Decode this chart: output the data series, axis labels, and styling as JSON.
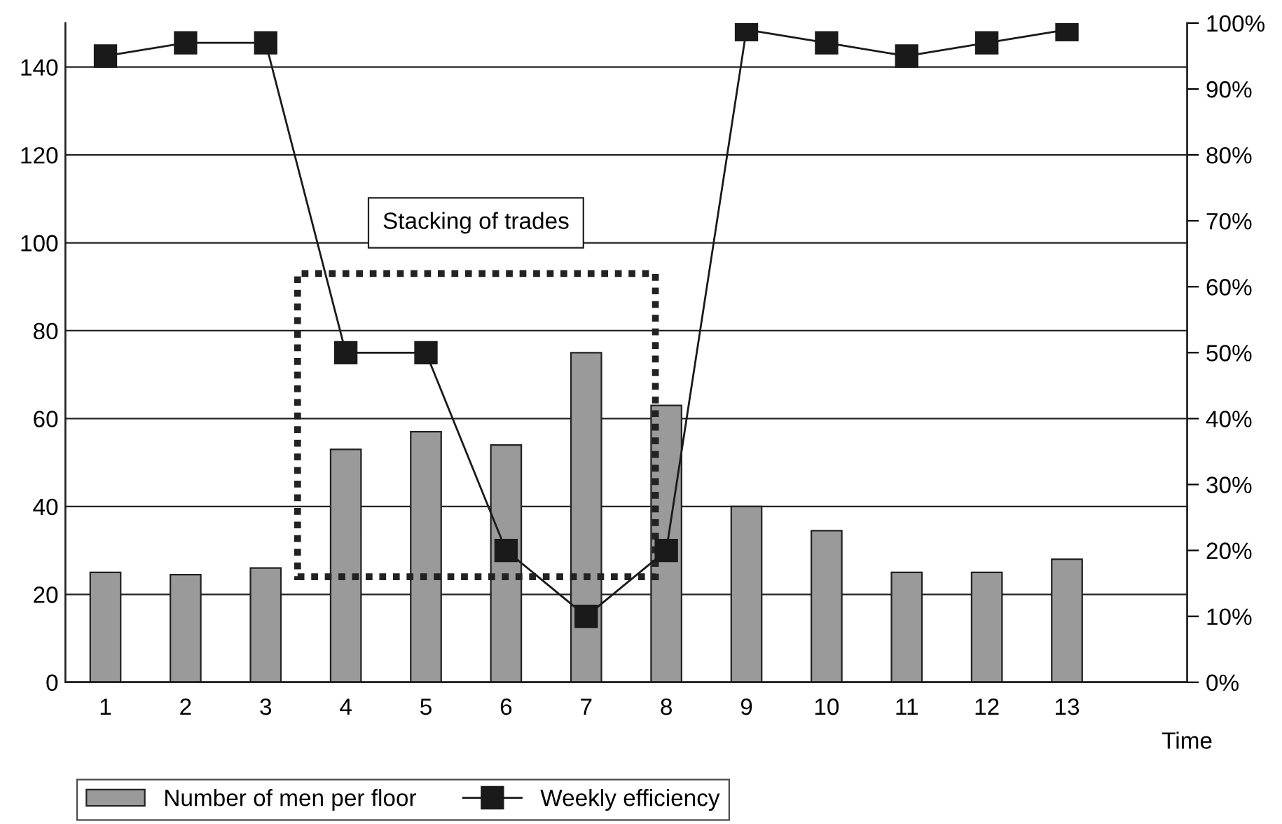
{
  "chart_data": {
    "type": "bar",
    "categories": [
      "1",
      "2",
      "3",
      "4",
      "5",
      "6",
      "7",
      "8",
      "9",
      "10",
      "11",
      "12",
      "13",
      null
    ],
    "xlabel": "Time",
    "series": [
      {
        "name": "Number of men per floor",
        "color": "#9a9a9a",
        "values": [
          25,
          24.5,
          26,
          53,
          57,
          54,
          75,
          63,
          40,
          34.5,
          25,
          25,
          28,
          null
        ]
      },
      {
        "name": "Weekly efficiency",
        "type": "line",
        "axis": "y2",
        "color": "#1a1a1a",
        "values": [
          95,
          97,
          97,
          50,
          50,
          20,
          10,
          20,
          99,
          97,
          95,
          97,
          99,
          null
        ]
      }
    ],
    "ylim": [
      0,
      150
    ],
    "yticks": [
      0,
      20,
      40,
      60,
      80,
      100,
      120,
      140
    ],
    "y2lim": [
      0,
      100
    ],
    "y2ticks": [
      {
        "value": 0,
        "label": "0%"
      },
      {
        "value": 10,
        "label": "10%"
      },
      {
        "value": 20,
        "label": "20%"
      },
      {
        "value": 30,
        "label": "30%"
      },
      {
        "value": 40,
        "label": "40%"
      },
      {
        "value": 50,
        "label": "50%"
      },
      {
        "value": 60,
        "label": "60%"
      },
      {
        "value": 70,
        "label": "70%"
      },
      {
        "value": 80,
        "label": "80%"
      },
      {
        "value": 90,
        "label": "90%"
      },
      {
        "value": 100,
        "label": "100%"
      }
    ],
    "annotations": [
      "Stacking of trades"
    ],
    "grid": "y",
    "legend": "bottom",
    "marker": "square",
    "line_style": "solid"
  }
}
